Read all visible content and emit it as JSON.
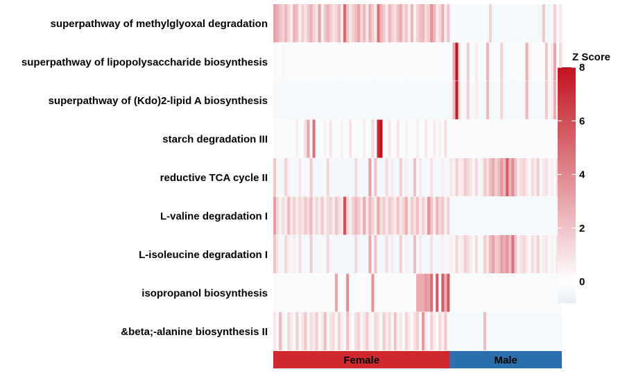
{
  "chart_data": {
    "type": "heatmap",
    "rows": [
      "superpathway of methylglyoxal degradation",
      "superpathway of lipopolysaccharide biosynthesis",
      "superpathway of (Kdo)2-lipid A biosynthesis",
      "starch degradation III",
      "reductive TCA cycle II",
      "L-valine degradation I",
      "L-isoleucine degradation I",
      "isopropanol biosynthesis",
      "&beta;-alanine biosynthesis II"
    ],
    "n_columns": 103,
    "groups": [
      {
        "name": "Female",
        "count": 63,
        "color": "#d0282f"
      },
      {
        "name": "Male",
        "count": 40,
        "color": "#2c6fad"
      }
    ],
    "legend": {
      "title": "Z Score",
      "ticks": [
        0,
        2,
        4,
        6,
        8
      ],
      "min": -0.8,
      "max": 8,
      "colors": {
        "low": "#e8eef6",
        "mid": "#ffffff",
        "high": "#c1121f"
      }
    },
    "values_note_excluded": true,
    "values": [
      [
        2.6,
        2.3,
        1.6,
        1.2,
        2.0,
        1.0,
        0.4,
        2.1,
        1.6,
        0.4,
        1.3,
        0.6,
        1.4,
        2.2,
        1.1,
        0.6,
        2.7,
        0.3,
        1.5,
        2.1,
        1.3,
        0.7,
        1.0,
        1.8,
        0.4,
        4.7,
        1.6,
        0.6,
        1.2,
        1.7,
        2.6,
        1.0,
        1.9,
        0.5,
        2.2,
        1.3,
        0.5,
        4.4,
        2.1,
        1.4,
        0.4,
        2.0,
        1.2,
        0.7,
        1.6,
        2.4,
        0.9,
        1.5,
        0.4,
        2.1,
        0.3,
        1.2,
        1.7,
        2.0,
        0.8,
        1.3,
        3.2,
        2.0,
        0.4,
        1.0,
        2.3,
        0.3,
        1.5,
        -0.3,
        -0.3,
        -0.3,
        -0.3,
        -0.3,
        -0.3,
        -0.3,
        -0.3,
        -0.3,
        -0.3,
        -0.3,
        -0.3,
        -0.2,
        -0.3,
        1.2,
        -0.3,
        -0.3,
        -0.3,
        -0.3,
        -0.3,
        -0.3,
        -0.3,
        -0.3,
        -0.3,
        -0.3,
        -0.3,
        -0.3,
        -0.3,
        -0.3,
        -0.3,
        -0.3,
        -0.3,
        -0.3,
        1.4,
        -0.3,
        -0.3,
        -0.3,
        1.2,
        -0.3,
        0.5
      ],
      [
        -0.2,
        -0.2,
        -0.2,
        0.2,
        -0.2,
        -0.2,
        -0.2,
        -0.2,
        -0.2,
        -0.2,
        -0.2,
        0.1,
        -0.2,
        -0.2,
        -0.2,
        -0.2,
        -0.2,
        -0.2,
        -0.2,
        -0.2,
        -0.2,
        -0.2,
        -0.2,
        -0.2,
        -0.2,
        -0.2,
        -0.2,
        -0.2,
        -0.2,
        -0.2,
        -0.2,
        -0.2,
        -0.2,
        -0.2,
        -0.2,
        -0.2,
        -0.2,
        -0.2,
        -0.2,
        -0.2,
        -0.2,
        -0.2,
        -0.2,
        -0.2,
        -0.2,
        -0.2,
        -0.2,
        -0.2,
        -0.2,
        -0.2,
        -0.2,
        -0.2,
        -0.2,
        -0.2,
        -0.2,
        -0.2,
        -0.2,
        -0.2,
        -0.2,
        -0.2,
        -0.2,
        -0.2,
        -0.2,
        -0.2,
        2.5,
        8.0,
        0.6,
        -0.2,
        -0.2,
        1.4,
        -0.2,
        -0.2,
        0.5,
        -0.2,
        -0.2,
        -0.2,
        2.1,
        -0.2,
        -0.2,
        -0.2,
        -0.2,
        1.2,
        -0.2,
        -0.2,
        -0.2,
        -0.2,
        -0.2,
        -0.2,
        -0.2,
        -0.2,
        2.2,
        0.3,
        -0.2,
        -0.2,
        -0.2,
        -0.2,
        -0.2,
        1.6,
        -0.2,
        0.5,
        2.6,
        -0.2,
        0.9
      ],
      [
        -0.3,
        -0.3,
        -0.3,
        -0.3,
        -0.3,
        -0.3,
        -0.3,
        -0.3,
        -0.3,
        -0.3,
        -0.3,
        -0.3,
        -0.3,
        -0.3,
        -0.3,
        -0.3,
        -0.3,
        -0.3,
        -0.3,
        -0.3,
        -0.3,
        -0.3,
        -0.3,
        -0.3,
        -0.3,
        -0.3,
        -0.3,
        -0.3,
        -0.3,
        -0.3,
        -0.3,
        -0.3,
        -0.3,
        -0.3,
        -0.3,
        -0.3,
        -0.3,
        -0.3,
        -0.3,
        -0.3,
        -0.3,
        -0.3,
        -0.3,
        -0.3,
        -0.3,
        -0.3,
        -0.3,
        -0.3,
        -0.3,
        -0.3,
        -0.3,
        -0.3,
        -0.3,
        -0.3,
        -0.3,
        -0.3,
        -0.3,
        -0.3,
        -0.3,
        -0.3,
        -0.3,
        -0.3,
        -0.3,
        -0.3,
        1.8,
        7.6,
        0.8,
        -0.3,
        -0.3,
        1.2,
        -0.3,
        -0.3,
        0.4,
        -0.3,
        -0.3,
        -0.3,
        1.9,
        -0.3,
        -0.3,
        -0.3,
        -0.3,
        1.1,
        -0.3,
        -0.3,
        -0.3,
        -0.3,
        -0.3,
        -0.3,
        -0.3,
        -0.3,
        1.9,
        0.2,
        -0.3,
        -0.3,
        -0.3,
        -0.3,
        -0.3,
        1.4,
        -0.3,
        0.4,
        2.3,
        -0.3,
        0.8
      ],
      [
        -0.2,
        -0.2,
        -0.2,
        -0.2,
        -0.2,
        -0.2,
        -0.2,
        -0.2,
        0.4,
        -0.2,
        -0.2,
        0.8,
        2.6,
        -0.2,
        4.4,
        -0.2,
        -0.2,
        -0.2,
        0.3,
        -0.2,
        0.6,
        -0.2,
        -0.2,
        -0.2,
        0.3,
        -0.2,
        -0.2,
        0.7,
        -0.2,
        -0.2,
        -0.2,
        -0.2,
        0.4,
        -0.2,
        -0.2,
        0.9,
        -0.2,
        7.0,
        8.0,
        -0.2,
        -0.2,
        0.5,
        -0.2,
        -0.2,
        0.6,
        -0.2,
        -0.2,
        0.3,
        -0.2,
        -0.2,
        -0.2,
        0.4,
        -0.2,
        -0.2,
        0.6,
        -0.2,
        -0.2,
        0.5,
        -0.2,
        0.3,
        -0.2,
        0.8,
        -0.2,
        -0.2,
        -0.2,
        -0.2,
        -0.2,
        -0.2,
        -0.2,
        -0.2,
        -0.2,
        -0.2,
        -0.2,
        -0.2,
        -0.2,
        -0.2,
        -0.2,
        -0.2,
        -0.2,
        -0.2,
        -0.2,
        -0.2,
        -0.2,
        -0.2,
        -0.2,
        -0.2,
        -0.2,
        -0.2,
        -0.2,
        -0.2,
        -0.2,
        -0.2,
        -0.2,
        -0.2,
        -0.2,
        -0.2,
        -0.2,
        -0.2,
        -0.2,
        -0.2,
        -0.2,
        -0.2,
        -0.2
      ],
      [
        1.4,
        0.2,
        -0.4,
        -0.4,
        1.1,
        0.3,
        -0.4,
        -0.4,
        -0.4,
        0.6,
        -0.4,
        -0.4,
        -0.4,
        1.4,
        -0.4,
        -0.4,
        -0.4,
        -0.4,
        -0.4,
        1.0,
        -0.4,
        -0.4,
        -0.4,
        -0.4,
        -0.4,
        -0.4,
        -0.4,
        -0.4,
        -0.4,
        0.9,
        -0.4,
        -0.4,
        -0.4,
        -0.4,
        2.7,
        -0.4,
        1.6,
        -0.4,
        -0.4,
        -0.4,
        0.8,
        -0.4,
        0.5,
        -0.4,
        -0.4,
        1.3,
        -0.4,
        0.4,
        -0.4,
        -0.4,
        1.7,
        -0.4,
        0.6,
        -0.4,
        -0.4,
        -0.4,
        0.8,
        -0.4,
        -0.4,
        -0.4,
        0.4,
        -0.4,
        -0.4,
        0.6,
        0.3,
        1.2,
        0.4,
        0.5,
        1.4,
        0.9,
        0.6,
        -0.3,
        1.0,
        -0.3,
        0.3,
        1.4,
        0.8,
        1.7,
        2.4,
        1.2,
        1.8,
        3.0,
        1.9,
        5.2,
        2.1,
        3.4,
        1.6,
        0.4,
        0.8,
        1.2,
        0.5,
        -0.3,
        0.9,
        0.4,
        1.3,
        -0.3,
        0.5,
        0.7,
        -0.3,
        0.4,
        -0.3,
        0.8,
        0.3
      ],
      [
        2.9,
        1.0,
        0.3,
        0.8,
        0.4,
        1.9,
        0.6,
        1.2,
        0.4,
        1.0,
        0.6,
        1.4,
        0.8,
        2.0,
        0.4,
        1.0,
        0.5,
        1.4,
        0.3,
        0.9,
        1.2,
        0.4,
        1.6,
        0.8,
        0.5,
        5.6,
        1.0,
        0.4,
        1.2,
        1.9,
        1.3,
        0.6,
        2.4,
        0.4,
        2.0,
        1.1,
        0.4,
        2.4,
        0.8,
        1.3,
        0.5,
        1.4,
        0.9,
        0.4,
        1.6,
        0.6,
        1.0,
        2.2,
        0.3,
        1.3,
        0.8,
        1.7,
        0.4,
        1.2,
        0.5,
        3.2,
        1.6,
        0.4,
        2.0,
        0.9,
        1.4,
        0.3,
        1.2,
        -0.3,
        -0.3,
        -0.3,
        -0.3,
        -0.3,
        -0.3,
        -0.3,
        -0.3,
        -0.3,
        -0.3,
        -0.3,
        -0.3,
        -0.3,
        -0.3,
        -0.3,
        -0.3,
        -0.3,
        -0.3,
        -0.3,
        -0.3,
        -0.3,
        -0.3,
        -0.3,
        -0.3,
        -0.3,
        -0.3,
        -0.3,
        -0.3,
        -0.3,
        -0.3,
        -0.3,
        -0.3,
        -0.3,
        -0.3,
        -0.3,
        -0.3,
        -0.3,
        -0.3,
        -0.3,
        -0.3
      ],
      [
        1.6,
        0.6,
        -0.4,
        -0.4,
        1.0,
        0.3,
        -0.4,
        0.4,
        -0.4,
        0.8,
        -0.4,
        -0.4,
        -0.4,
        1.3,
        -0.4,
        -0.4,
        0.2,
        -0.4,
        -0.4,
        0.9,
        -0.4,
        -0.4,
        -0.4,
        -0.4,
        -0.4,
        -0.4,
        -0.4,
        -0.4,
        -0.4,
        1.0,
        -0.4,
        -0.4,
        -0.4,
        -0.4,
        2.4,
        -0.4,
        1.6,
        -0.4,
        -0.4,
        -0.4,
        0.8,
        -0.4,
        0.5,
        -0.4,
        -0.4,
        1.2,
        -0.4,
        0.3,
        -0.4,
        -0.4,
        1.8,
        -0.4,
        0.6,
        -0.4,
        -0.4,
        -0.4,
        0.7,
        -0.4,
        -0.4,
        -0.4,
        0.3,
        -0.4,
        -0.4,
        0.4,
        0.2,
        1.0,
        0.3,
        0.4,
        1.2,
        0.8,
        0.4,
        -0.3,
        0.9,
        -0.3,
        0.2,
        1.3,
        0.6,
        1.9,
        2.7,
        1.3,
        1.6,
        2.8,
        2.2,
        3.1,
        1.7,
        4.3,
        1.5,
        0.3,
        0.7,
        1.0,
        0.4,
        -0.3,
        0.8,
        0.3,
        1.2,
        -0.3,
        0.4,
        0.6,
        -0.3,
        0.3,
        -0.3,
        0.7,
        0.2
      ],
      [
        -0.2,
        -0.2,
        -0.2,
        -0.2,
        -0.2,
        -0.2,
        -0.2,
        -0.2,
        -0.2,
        -0.2,
        -0.2,
        -0.2,
        -0.2,
        -0.2,
        -0.2,
        -0.2,
        -0.2,
        -0.2,
        -0.2,
        -0.2,
        -0.2,
        -0.2,
        2.6,
        -0.2,
        -0.2,
        -0.2,
        3.3,
        -0.2,
        -0.2,
        -0.2,
        -0.2,
        -0.2,
        -0.2,
        -0.2,
        -0.2,
        3.1,
        -0.2,
        -0.2,
        -0.2,
        -0.2,
        -0.2,
        -0.2,
        -0.2,
        -0.2,
        -0.2,
        -0.2,
        -0.2,
        -0.2,
        -0.2,
        -0.2,
        -0.2,
        2.2,
        2.4,
        2.4,
        3.0,
        2.6,
        4.5,
        -0.2,
        5.3,
        -0.2,
        5.0,
        2.3,
        5.3,
        -0.2,
        -0.2,
        -0.2,
        -0.2,
        -0.2,
        -0.2,
        -0.2,
        -0.2,
        -0.2,
        -0.2,
        -0.2,
        -0.2,
        -0.2,
        -0.2,
        -0.2,
        -0.2,
        -0.2,
        -0.2,
        -0.2,
        -0.2,
        -0.2,
        -0.2,
        -0.2,
        -0.2,
        -0.2,
        -0.2,
        -0.2,
        -0.2,
        -0.2,
        -0.2,
        -0.2,
        -0.2,
        -0.2,
        -0.2,
        -0.2,
        -0.2,
        -0.2,
        -0.2,
        -0.2,
        -0.2
      ],
      [
        0.6,
        -0.3,
        1.9,
        0.3,
        -0.3,
        1.0,
        0.4,
        -0.3,
        1.2,
        -0.3,
        0.6,
        1.5,
        -0.3,
        0.8,
        0.4,
        1.3,
        -0.3,
        0.5,
        1.8,
        -0.3,
        0.6,
        0.9,
        -0.3,
        1.1,
        0.3,
        -0.3,
        1.6,
        0.4,
        -0.3,
        0.8,
        1.2,
        -0.3,
        0.5,
        1.4,
        0.3,
        -0.3,
        1.0,
        0.6,
        -0.3,
        1.3,
        0.4,
        0.9,
        -0.3,
        1.7,
        0.3,
        0.6,
        -0.3,
        1.1,
        0.4,
        -0.3,
        0.8,
        1.3,
        -0.3,
        3.0,
        0.5,
        -0.3,
        1.2,
        0.4,
        -0.3,
        0.9,
        0.3,
        1.4,
        -0.3,
        -0.3,
        -0.3,
        -0.3,
        -0.3,
        -0.3,
        -0.3,
        -0.3,
        -0.3,
        -0.3,
        -0.3,
        -0.3,
        -0.3,
        1.8,
        -0.3,
        -0.3,
        -0.3,
        -0.3,
        -0.3,
        -0.3,
        -0.3,
        -0.3,
        -0.3,
        -0.3,
        -0.3,
        -0.3,
        -0.3,
        -0.3,
        -0.3,
        -0.3,
        -0.3,
        -0.3,
        -0.3,
        -0.3,
        -0.3,
        -0.3,
        -0.3,
        -0.3,
        -0.3,
        -0.3,
        -0.3
      ]
    ]
  }
}
